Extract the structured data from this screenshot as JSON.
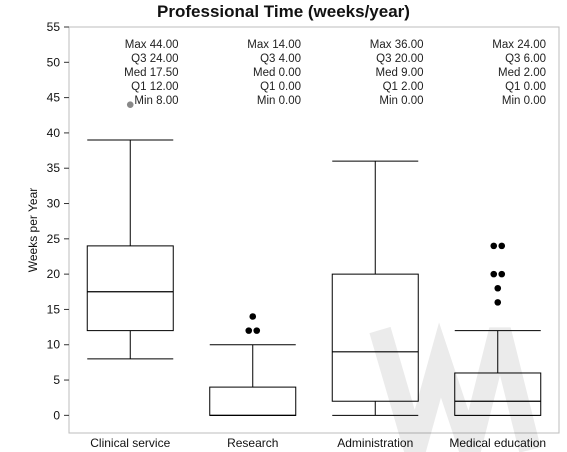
{
  "chart_data": {
    "type": "box",
    "title": "Professional Time (weeks/year)",
    "xlabel": "",
    "ylabel": "Weeks per Year",
    "ylim": [
      -2.5,
      55
    ],
    "yticks": [
      0,
      5,
      10,
      15,
      20,
      25,
      30,
      35,
      40,
      45,
      50,
      55
    ],
    "grid": false,
    "categories": [
      "Clinical service",
      "Research",
      "Administration",
      "Medical education"
    ],
    "series": [
      {
        "category": "Clinical service",
        "max": 44.0,
        "q3": 24.0,
        "median": 17.5,
        "q1": 12.0,
        "min": 8.0,
        "whisker_low": 8.0,
        "whisker_high": 39.0,
        "outliers": [
          44.0
        ],
        "outlier_color": "#888888",
        "stats_text": [
          {
            "label": "Max",
            "value": "44.00"
          },
          {
            "label": "Q3",
            "value": "24.00"
          },
          {
            "label": "Med",
            "value": "17.50"
          },
          {
            "label": "Q1",
            "value": "12.00"
          },
          {
            "label": "Min",
            "value": "8.00"
          }
        ]
      },
      {
        "category": "Research",
        "max": 14.0,
        "q3": 4.0,
        "median": 0.0,
        "q1": 0.0,
        "min": 0.0,
        "whisker_low": 0.0,
        "whisker_high": 10.0,
        "outliers": [
          12.0,
          12.0,
          14.0
        ],
        "outlier_color": "#000000",
        "stats_text": [
          {
            "label": "Max",
            "value": "14.00"
          },
          {
            "label": "Q3",
            "value": "4.00"
          },
          {
            "label": "Med",
            "value": "0.00"
          },
          {
            "label": "Q1",
            "value": "0.00"
          },
          {
            "label": "Min",
            "value": "0.00"
          }
        ]
      },
      {
        "category": "Administration",
        "max": 36.0,
        "q3": 20.0,
        "median": 9.0,
        "q1": 2.0,
        "min": 0.0,
        "whisker_low": 0.0,
        "whisker_high": 36.0,
        "outliers": [],
        "outlier_color": "#000000",
        "stats_text": [
          {
            "label": "Max",
            "value": "36.00"
          },
          {
            "label": "Q3",
            "value": "20.00"
          },
          {
            "label": "Med",
            "value": "9.00"
          },
          {
            "label": "Q1",
            "value": "2.00"
          },
          {
            "label": "Min",
            "value": "0.00"
          }
        ]
      },
      {
        "category": "Medical education",
        "max": 24.0,
        "q3": 6.0,
        "median": 2.0,
        "q1": 0.0,
        "min": 0.0,
        "whisker_low": 0.0,
        "whisker_high": 12.0,
        "outliers": [
          16.0,
          18.0,
          20.0,
          20.0,
          24.0,
          24.0
        ],
        "outlier_color": "#000000",
        "stats_text": [
          {
            "label": "Max",
            "value": "24.00"
          },
          {
            "label": "Q3",
            "value": "6.00"
          },
          {
            "label": "Med",
            "value": "2.00"
          },
          {
            "label": "Q1",
            "value": "0.00"
          },
          {
            "label": "Min",
            "value": "0.00"
          }
        ]
      }
    ]
  }
}
